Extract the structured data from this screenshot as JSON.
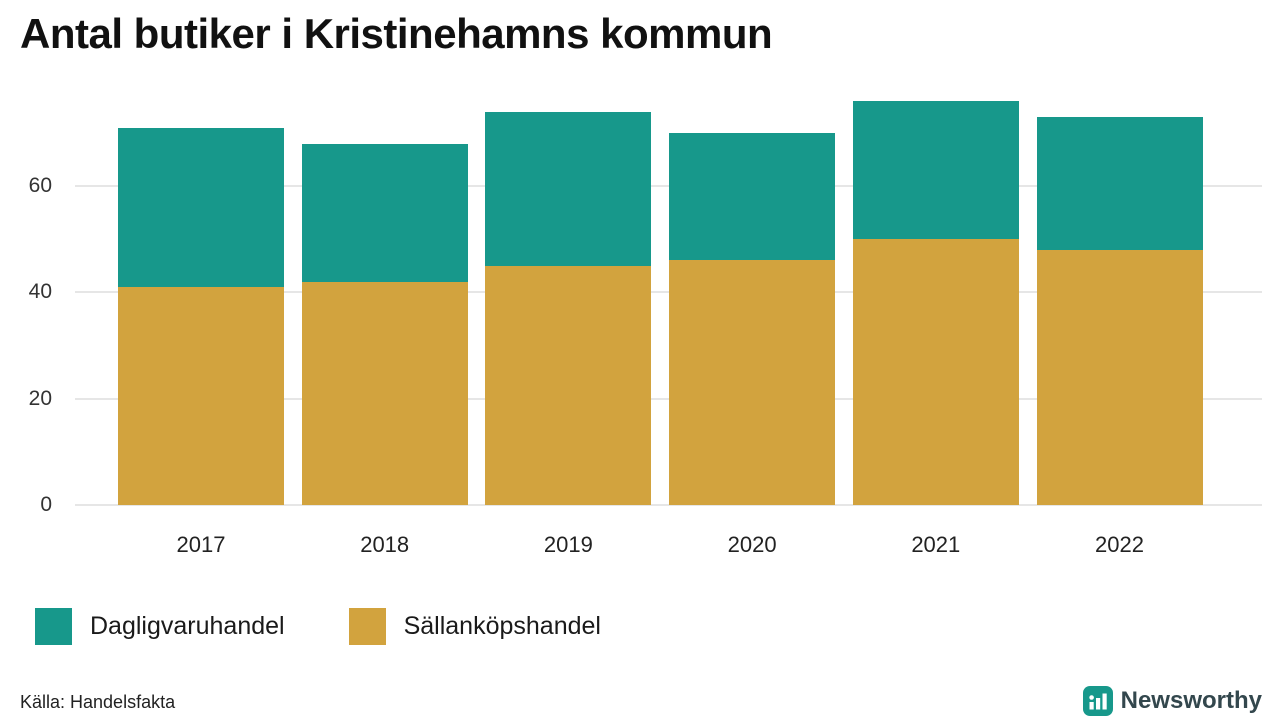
{
  "title": "Antal butiker i Kristinehamns kommun",
  "source": "Källa: Handelsfakta",
  "brand": {
    "name": "Newsworthy",
    "icon": "bar-chart-icon",
    "color": "#17988b",
    "text_color": "#33474d"
  },
  "colors": {
    "teal": "#17988b",
    "gold": "#d2a33e",
    "grid": "#e6e6e6",
    "text": "#1a1a1a"
  },
  "legend": [
    {
      "id": "dagligvaruhandel",
      "label": "Dagligvaruhandel",
      "color": "#17988b"
    },
    {
      "id": "sallankopshandel",
      "label": "Sällanköpshandel",
      "color": "#d2a33e"
    }
  ],
  "chart_data": {
    "type": "bar",
    "stacked": true,
    "title": "Antal butiker i Kristinehamns kommun",
    "categories": [
      "2017",
      "2018",
      "2019",
      "2020",
      "2021",
      "2022"
    ],
    "series": [
      {
        "name": "Sällanköpshandel",
        "color": "#d2a33e",
        "values": [
          41,
          42,
          45,
          46,
          50,
          48
        ]
      },
      {
        "name": "Dagligvaruhandel",
        "color": "#17988b",
        "values": [
          30,
          26,
          29,
          24,
          26,
          25
        ]
      }
    ],
    "totals": [
      71,
      68,
      74,
      70,
      76,
      73
    ],
    "xlabel": "",
    "ylabel": "",
    "yticks": [
      0,
      20,
      40,
      60
    ],
    "ylim": [
      0,
      79
    ],
    "grid": true,
    "legend_position": "bottom",
    "source": "Källa: Handelsfakta"
  }
}
